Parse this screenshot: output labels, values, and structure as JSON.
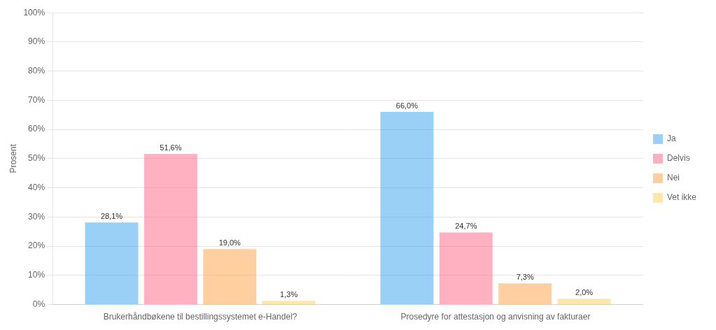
{
  "chart_data": {
    "type": "bar",
    "categories": [
      "Brukerhåndbøkene til bestillingssystemet e-Handel?",
      "Prosedyre for attestasjon og anvisning av fakturaer"
    ],
    "series": [
      {
        "name": "Ja",
        "values": [
          28.1,
          66.0
        ],
        "value_labels": [
          "28,1%",
          "66,0%"
        ]
      },
      {
        "name": "Delvis",
        "values": [
          51.6,
          24.7
        ],
        "value_labels": [
          "51,6%",
          "24,7%"
        ]
      },
      {
        "name": "Nei",
        "values": [
          19.0,
          7.3
        ],
        "value_labels": [
          "19,0%",
          "7,3%"
        ]
      },
      {
        "name": "Vet ikke",
        "values": [
          1.3,
          2.0
        ],
        "value_labels": [
          "1,3%",
          "2,0%"
        ]
      }
    ],
    "ylabel": "Prosent",
    "ylim": [
      0,
      100
    ],
    "yticks": [
      {
        "value": 0,
        "label": "0%"
      },
      {
        "value": 10,
        "label": "10%"
      },
      {
        "value": 20,
        "label": "20%"
      },
      {
        "value": 30,
        "label": "30%"
      },
      {
        "value": 40,
        "label": "40%"
      },
      {
        "value": 50,
        "label": "50%"
      },
      {
        "value": 60,
        "label": "60%"
      },
      {
        "value": 70,
        "label": "70%"
      },
      {
        "value": 80,
        "label": "80%"
      },
      {
        "value": 90,
        "label": "90%"
      },
      {
        "value": 100,
        "label": "100%"
      }
    ],
    "grid": true,
    "legend": "right",
    "data_labels": true
  }
}
